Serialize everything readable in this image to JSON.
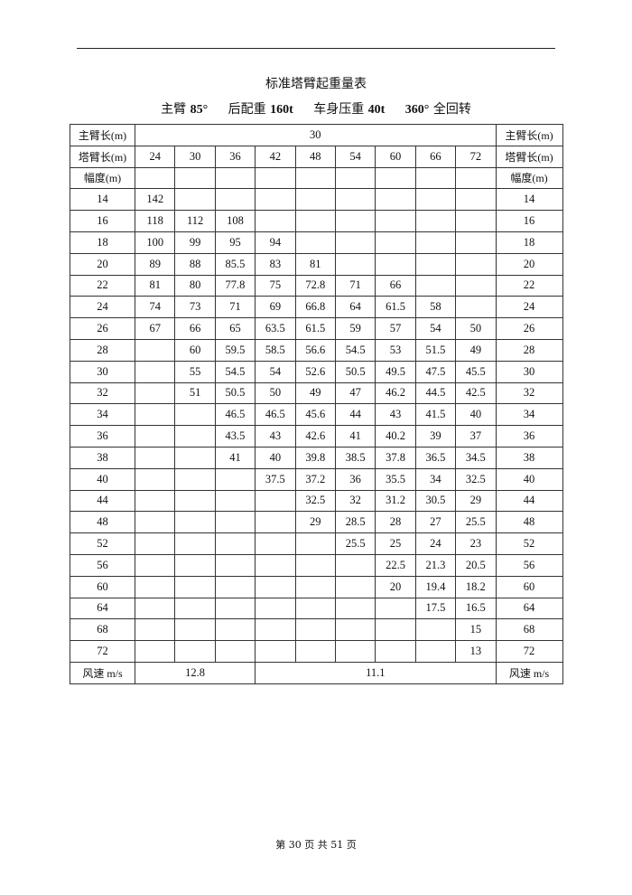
{
  "title": "标准塔臂起重量表",
  "subtitle": {
    "main_boom_label": "主臂",
    "main_boom_value": "85°",
    "counterweight_label": "后配重",
    "counterweight_value": "160t",
    "body_weight_label": "车身压重",
    "body_weight_value": "40t",
    "rotation_value": "360°",
    "rotation_label": "全回转"
  },
  "table": {
    "main_boom_label": "主臂长(m)",
    "main_boom_value": "30",
    "jib_label": "塔臂长(m)",
    "jib_lengths": [
      "24",
      "30",
      "36",
      "42",
      "48",
      "54",
      "60",
      "66",
      "72"
    ],
    "radius_label": "幅度(m)",
    "rows": [
      {
        "r": "14",
        "v": [
          "142",
          "",
          "",
          "",
          "",
          "",
          "",
          "",
          ""
        ]
      },
      {
        "r": "16",
        "v": [
          "118",
          "112",
          "108",
          "",
          "",
          "",
          "",
          "",
          ""
        ]
      },
      {
        "r": "18",
        "v": [
          "100",
          "99",
          "95",
          "94",
          "",
          "",
          "",
          "",
          ""
        ]
      },
      {
        "r": "20",
        "v": [
          "89",
          "88",
          "85.5",
          "83",
          "81",
          "",
          "",
          "",
          ""
        ]
      },
      {
        "r": "22",
        "v": [
          "81",
          "80",
          "77.8",
          "75",
          "72.8",
          "71",
          "66",
          "",
          ""
        ]
      },
      {
        "r": "24",
        "v": [
          "74",
          "73",
          "71",
          "69",
          "66.8",
          "64",
          "61.5",
          "58",
          ""
        ]
      },
      {
        "r": "26",
        "v": [
          "67",
          "66",
          "65",
          "63.5",
          "61.5",
          "59",
          "57",
          "54",
          "50"
        ]
      },
      {
        "r": "28",
        "v": [
          "",
          "60",
          "59.5",
          "58.5",
          "56.6",
          "54.5",
          "53",
          "51.5",
          "49"
        ]
      },
      {
        "r": "30",
        "v": [
          "",
          "55",
          "54.5",
          "54",
          "52.6",
          "50.5",
          "49.5",
          "47.5",
          "45.5"
        ]
      },
      {
        "r": "32",
        "v": [
          "",
          "51",
          "50.5",
          "50",
          "49",
          "47",
          "46.2",
          "44.5",
          "42.5"
        ]
      },
      {
        "r": "34",
        "v": [
          "",
          "",
          "46.5",
          "46.5",
          "45.6",
          "44",
          "43",
          "41.5",
          "40"
        ]
      },
      {
        "r": "36",
        "v": [
          "",
          "",
          "43.5",
          "43",
          "42.6",
          "41",
          "40.2",
          "39",
          "37"
        ]
      },
      {
        "r": "38",
        "v": [
          "",
          "",
          "41",
          "40",
          "39.8",
          "38.5",
          "37.8",
          "36.5",
          "34.5"
        ]
      },
      {
        "r": "40",
        "v": [
          "",
          "",
          "",
          "37.5",
          "37.2",
          "36",
          "35.5",
          "34",
          "32.5"
        ]
      },
      {
        "r": "44",
        "v": [
          "",
          "",
          "",
          "",
          "32.5",
          "32",
          "31.2",
          "30.5",
          "29"
        ]
      },
      {
        "r": "48",
        "v": [
          "",
          "",
          "",
          "",
          "29",
          "28.5",
          "28",
          "27",
          "25.5"
        ]
      },
      {
        "r": "52",
        "v": [
          "",
          "",
          "",
          "",
          "",
          "25.5",
          "25",
          "24",
          "23"
        ]
      },
      {
        "r": "56",
        "v": [
          "",
          "",
          "",
          "",
          "",
          "",
          "22.5",
          "21.3",
          "20.5"
        ]
      },
      {
        "r": "60",
        "v": [
          "",
          "",
          "",
          "",
          "",
          "",
          "20",
          "19.4",
          "18.2"
        ]
      },
      {
        "r": "64",
        "v": [
          "",
          "",
          "",
          "",
          "",
          "",
          "",
          "17.5",
          "16.5"
        ]
      },
      {
        "r": "68",
        "v": [
          "",
          "",
          "",
          "",
          "",
          "",
          "",
          "",
          "15"
        ]
      },
      {
        "r": "72",
        "v": [
          "",
          "",
          "",
          "",
          "",
          "",
          "",
          "",
          "13"
        ]
      }
    ],
    "wind_label": "风速 m/s",
    "wind_values": [
      "12.8",
      "11.1"
    ]
  },
  "footer": "第 30 页 共 51 页"
}
